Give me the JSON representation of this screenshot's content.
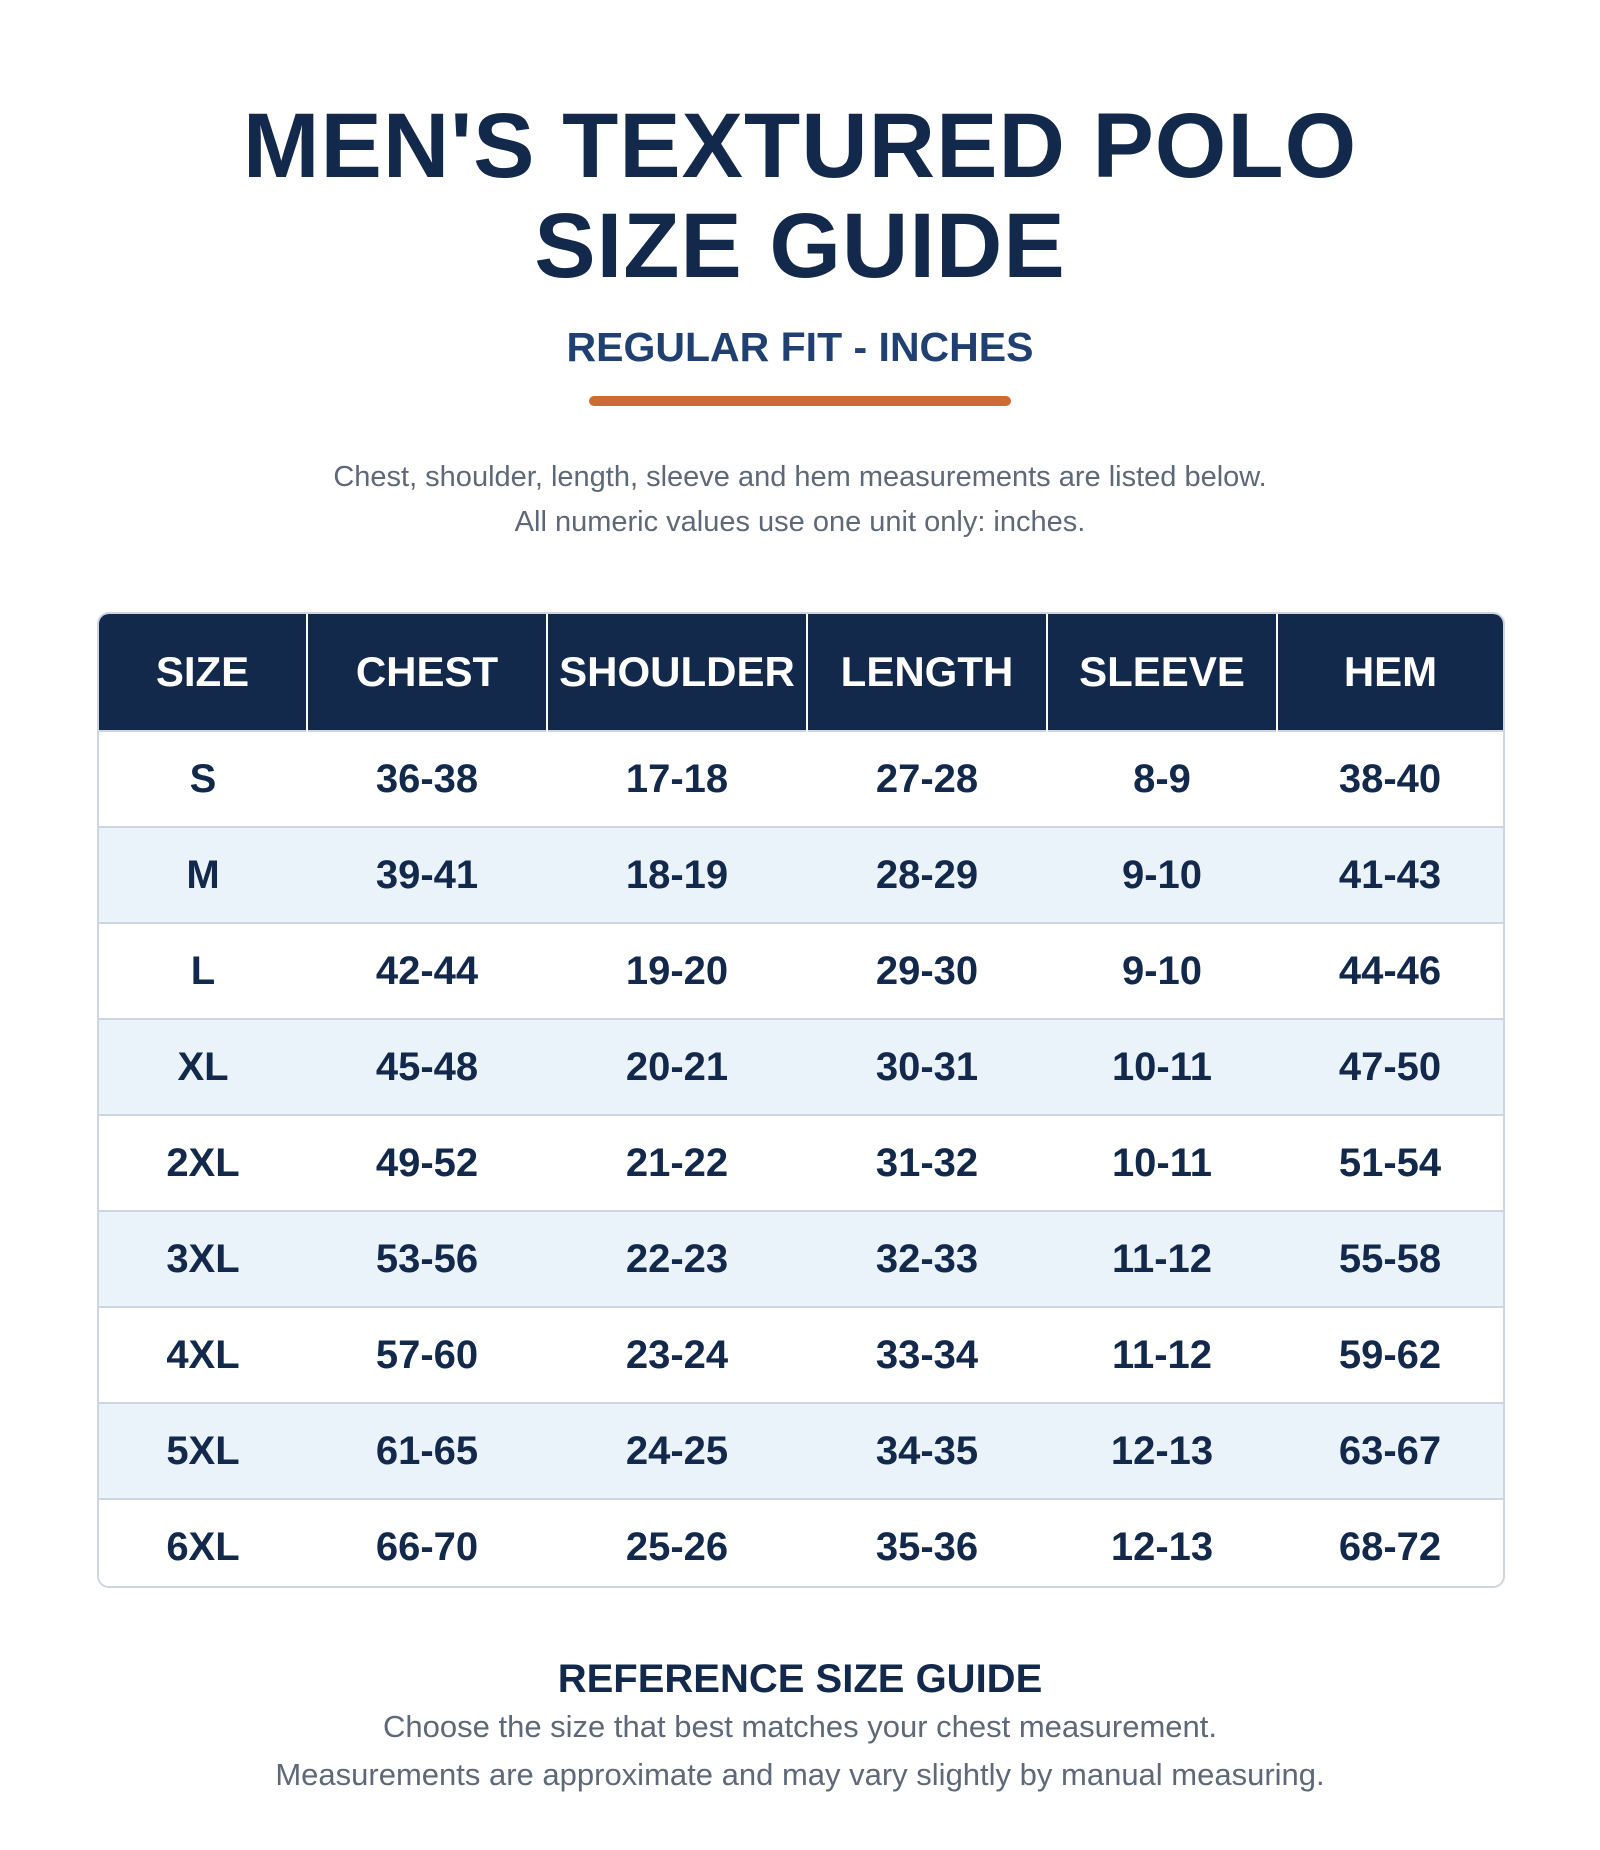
{
  "header": {
    "title_line1": "MEN'S TEXTURED POLO",
    "title_line2": "SIZE GUIDE",
    "subtitle": "REGULAR FIT - INCHES",
    "accent_color": "#cf6a35"
  },
  "intro": {
    "line1": "Chest, shoulder, length, sleeve and hem measurements are listed below.",
    "line2": "All numeric values use one unit only: inches."
  },
  "table": {
    "columns": [
      "SIZE",
      "CHEST",
      "SHOULDER",
      "LENGTH",
      "SLEEVE",
      "HEM"
    ],
    "rows": [
      [
        "S",
        "36-38",
        "17-18",
        "27-28",
        "8-9",
        "38-40"
      ],
      [
        "M",
        "39-41",
        "18-19",
        "28-29",
        "9-10",
        "41-43"
      ],
      [
        "L",
        "42-44",
        "19-20",
        "29-30",
        "9-10",
        "44-46"
      ],
      [
        "XL",
        "45-48",
        "20-21",
        "30-31",
        "10-11",
        "47-50"
      ],
      [
        "2XL",
        "49-52",
        "21-22",
        "31-32",
        "10-11",
        "51-54"
      ],
      [
        "3XL",
        "53-56",
        "22-23",
        "32-33",
        "11-12",
        "55-58"
      ],
      [
        "4XL",
        "57-60",
        "23-24",
        "33-34",
        "11-12",
        "59-62"
      ],
      [
        "5XL",
        "61-65",
        "24-25",
        "34-35",
        "12-13",
        "63-67"
      ],
      [
        "6XL",
        "66-70",
        "25-26",
        "35-36",
        "12-13",
        "68-72"
      ]
    ]
  },
  "footer": {
    "title": "REFERENCE SIZE GUIDE",
    "line1": "Choose the size that best matches your chest measurement.",
    "line2": "Measurements are approximate and may vary slightly by manual measuring."
  }
}
